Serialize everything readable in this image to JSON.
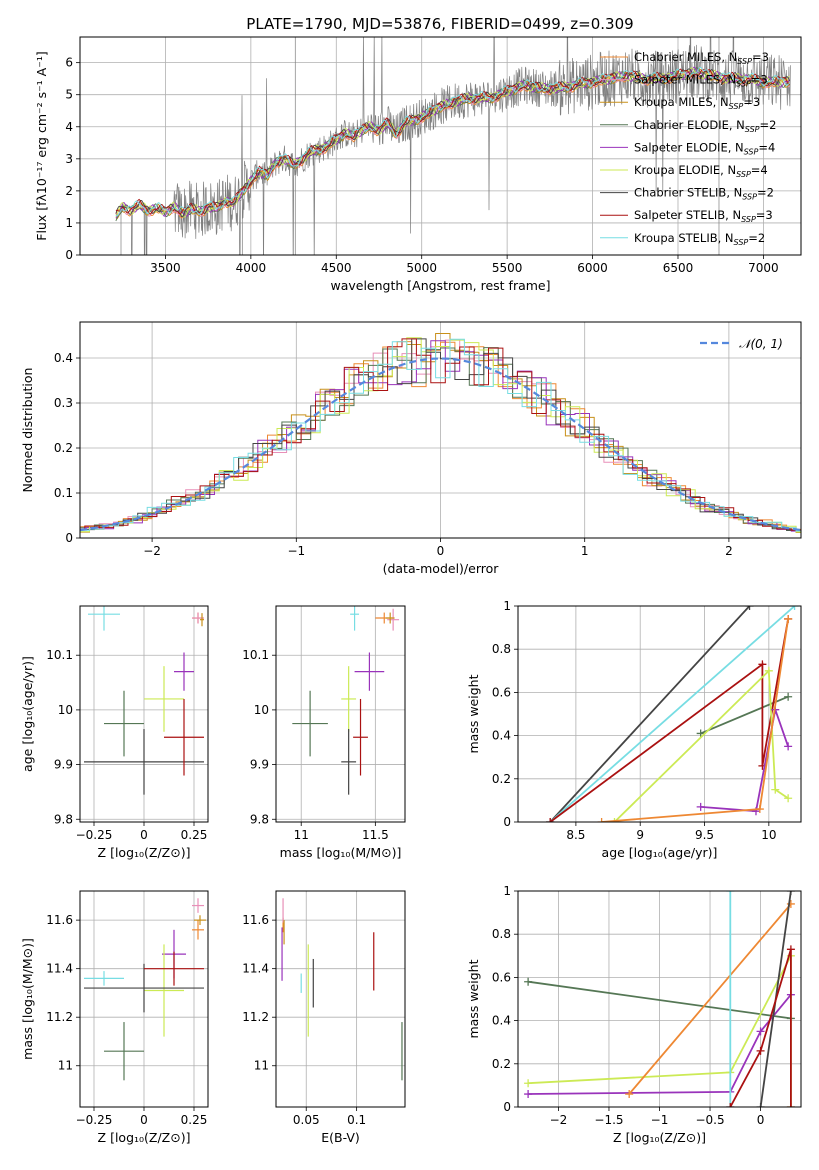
{
  "figure": {
    "title": "PLATE=1790, MJD=53876, FIBERID=0499, z=0.309"
  },
  "colors": {
    "chabrier_miles": "#ee8833",
    "salpeter_miles": "#e88fb8",
    "kroupa_miles": "#c8901a",
    "chabrier_elodie": "#557755",
    "salpeter_elodie": "#9933bb",
    "kroupa_elodie": "#ccea55",
    "chabrier_stelib": "#444444",
    "salpeter_stelib": "#aa1111",
    "kroupa_stelib": "#77dde3",
    "data": "#7f7f7f",
    "gauss": "#5588dd"
  },
  "chart_data": [
    {
      "id": "spectrum",
      "type": "line",
      "title": "PLATE=1790, MJD=53876, FIBERID=0499, z=0.309",
      "xlabel": "wavelength [Angstrom, rest frame]",
      "ylabel": "Flux [fλ10⁻¹⁷ erg cm⁻² s⁻¹ A⁻¹]",
      "xlim": [
        3000,
        7220
      ],
      "ylim": [
        0,
        6.8
      ],
      "xticks": [
        3500,
        4000,
        4500,
        5000,
        5500,
        6000,
        6500,
        7000
      ],
      "yticks": [
        0,
        1,
        2,
        3,
        4,
        5,
        6
      ],
      "legend_position": "right",
      "legend": [
        {
          "label": "Chabrier MILES, N",
          "sub": "SSP",
          "suffix": "=3",
          "color": "chabrier_miles"
        },
        {
          "label": "Salpeter MILES, N",
          "sub": "SSP",
          "suffix": "=3",
          "color": "salpeter_miles"
        },
        {
          "label": "Kroupa MILES, N",
          "sub": "SSP",
          "suffix": "=3",
          "color": "kroupa_miles"
        },
        {
          "label": "Chabrier ELODIE, N",
          "sub": "SSP",
          "suffix": "=2",
          "color": "chabrier_elodie"
        },
        {
          "label": "Salpeter ELODIE, N",
          "sub": "SSP",
          "suffix": "=4",
          "color": "salpeter_elodie"
        },
        {
          "label": "Kroupa ELODIE, N",
          "sub": "SSP",
          "suffix": "=4",
          "color": "kroupa_elodie"
        },
        {
          "label": "Chabrier STELIB, N",
          "sub": "SSP",
          "suffix": "=2",
          "color": "chabrier_stelib"
        },
        {
          "label": "Salpeter STELIB, N",
          "sub": "SSP",
          "suffix": "=3",
          "color": "salpeter_stelib"
        },
        {
          "label": "Kroupa STELIB, N",
          "sub": "SSP",
          "suffix": "=2",
          "color": "kroupa_stelib"
        }
      ],
      "model_continuum": {
        "x": [
          3210,
          3250,
          3300,
          3350,
          3400,
          3450,
          3500,
          3550,
          3600,
          3650,
          3700,
          3750,
          3800,
          3850,
          3900,
          3950,
          4000,
          4050,
          4100,
          4150,
          4200,
          4250,
          4300,
          4350,
          4400,
          4450,
          4500,
          4550,
          4600,
          4650,
          4700,
          4750,
          4800,
          4850,
          4900,
          4950,
          5000,
          5100,
          5200,
          5300,
          5400,
          5500,
          5600,
          5700,
          5800,
          5900,
          6000,
          6100,
          6200,
          6300,
          6400,
          6500,
          6600,
          6700,
          6800,
          6900,
          7000
        ],
        "y": [
          1.2,
          1.5,
          1.4,
          1.55,
          1.4,
          1.45,
          1.35,
          1.5,
          1.3,
          1.45,
          1.35,
          1.5,
          1.45,
          1.7,
          1.6,
          2.0,
          2.3,
          2.6,
          2.5,
          2.9,
          3.0,
          2.8,
          3.0,
          3.2,
          3.3,
          3.4,
          3.6,
          3.8,
          3.7,
          3.9,
          4.0,
          3.9,
          4.1,
          3.8,
          4.1,
          4.2,
          4.3,
          4.6,
          4.8,
          4.9,
          4.9,
          5.1,
          5.3,
          5.2,
          5.2,
          5.3,
          5.4,
          5.5,
          5.6,
          5.5,
          5.5,
          5.6,
          5.7,
          5.6,
          5.5,
          5.5,
          5.4
        ]
      }
    },
    {
      "id": "residuals",
      "type": "bar",
      "xlabel": "(data-model)/error",
      "ylabel": "Normed distribution",
      "xlim": [
        -2.5,
        2.5
      ],
      "ylim": [
        0,
        0.48
      ],
      "xticks": [
        -2,
        -1,
        0,
        1,
        2
      ],
      "yticks": [
        0.0,
        0.1,
        0.2,
        0.3,
        0.4
      ],
      "legend_position": "top-right",
      "legend_label": "𝒩(0, 1)",
      "bin_width": 0.1
    },
    {
      "id": "age_vs_Z",
      "type": "scatter",
      "xlabel": "Z [log₁₀(Z/Z⊙)]",
      "ylabel": "age  [log₁₀(age/yr)]",
      "xlim": [
        -0.32,
        0.32
      ],
      "ylim": [
        9.795,
        10.19
      ],
      "xticks": [
        -0.25,
        0.0,
        0.25
      ],
      "yticks": [
        9.8,
        9.9,
        10.0,
        10.1
      ],
      "points": [
        {
          "color": "chabrier_miles",
          "x": 0.27,
          "xerr": 0.03,
          "y": 10.168,
          "yerr": 0.01
        },
        {
          "color": "salpeter_miles",
          "x": 0.27,
          "xerr": 0.03,
          "y": 10.168,
          "yerr": 0.01
        },
        {
          "color": "kroupa_miles",
          "x": 0.29,
          "xerr": 0.01,
          "y": 10.165,
          "yerr": 0.012
        },
        {
          "color": "chabrier_elodie",
          "x": -0.1,
          "xerr": 0.1,
          "y": 9.975,
          "yerr": 0.06
        },
        {
          "color": "salpeter_elodie",
          "x": 0.2,
          "xerr": 0.05,
          "y": 10.07,
          "yerr": 0.035
        },
        {
          "color": "kroupa_elodie",
          "x": 0.1,
          "xerr": 0.1,
          "y": 10.02,
          "yerr": 0.06
        },
        {
          "color": "chabrier_stelib",
          "x": 0.0,
          "xerr": 0.3,
          "y": 9.905,
          "yerr": 0.06
        },
        {
          "color": "salpeter_stelib",
          "x": 0.2,
          "xerr": 0.1,
          "y": 9.95,
          "yerr": 0.07
        },
        {
          "color": "kroupa_stelib",
          "x": -0.2,
          "xerr": 0.08,
          "y": 10.175,
          "yerr": 0.03
        }
      ]
    },
    {
      "id": "age_vs_mass",
      "type": "scatter",
      "xlabel": "mass [log₁₀(M/M⊙)]",
      "ylabel": "",
      "xlim": [
        10.83,
        11.7
      ],
      "ylim": [
        9.795,
        10.19
      ],
      "xticks": [
        11.0,
        11.5
      ],
      "yticks": [
        9.8,
        9.9,
        10.0,
        10.1
      ],
      "points": [
        {
          "color": "chabrier_miles",
          "x": 11.56,
          "xerr": 0.06,
          "y": 10.168,
          "yerr": 0.01
        },
        {
          "color": "salpeter_miles",
          "x": 11.62,
          "xerr": 0.04,
          "y": 10.165,
          "yerr": 0.02
        },
        {
          "color": "kroupa_miles",
          "x": 11.6,
          "xerr": 0.03,
          "y": 10.168,
          "yerr": 0.01
        },
        {
          "color": "chabrier_elodie",
          "x": 11.06,
          "xerr": 0.12,
          "y": 9.975,
          "yerr": 0.06
        },
        {
          "color": "salpeter_elodie",
          "x": 11.46,
          "xerr": 0.1,
          "y": 10.07,
          "yerr": 0.035
        },
        {
          "color": "kroupa_elodie",
          "x": 11.32,
          "xerr": 0.05,
          "y": 10.02,
          "yerr": 0.06
        },
        {
          "color": "chabrier_stelib",
          "x": 11.32,
          "xerr": 0.05,
          "y": 9.905,
          "yerr": 0.06
        },
        {
          "color": "salpeter_stelib",
          "x": 11.4,
          "xerr": 0.05,
          "y": 9.95,
          "yerr": 0.07
        },
        {
          "color": "kroupa_stelib",
          "x": 11.36,
          "xerr": 0.03,
          "y": 10.175,
          "yerr": 0.03
        }
      ]
    },
    {
      "id": "mass_weight_vs_age",
      "type": "line",
      "xlabel": "age  [log₁₀(age/yr)]",
      "ylabel": "mass weight",
      "xlim": [
        8.05,
        10.25
      ],
      "ylim": [
        0,
        1
      ],
      "xticks": [
        8.5,
        9.0,
        9.5,
        10.0
      ],
      "yticks": [
        0.0,
        0.2,
        0.4,
        0.6,
        0.8,
        1.0
      ],
      "series": [
        {
          "color": "chabrier_stelib",
          "x": [
            8.3,
            9.85
          ],
          "y": [
            0.0,
            1.0
          ]
        },
        {
          "color": "kroupa_stelib",
          "x": [
            8.3,
            10.2
          ],
          "y": [
            0.0,
            1.0
          ]
        },
        {
          "color": "chabrier_elodie",
          "x": [
            9.47,
            10.15
          ],
          "y": [
            0.41,
            0.58
          ]
        },
        {
          "color": "salpeter_stelib",
          "x": [
            8.3,
            9.95,
            9.95,
            10.15
          ],
          "y": [
            0.0,
            0.73,
            0.26,
            0.94
          ]
        },
        {
          "color": "kroupa_elodie",
          "x": [
            8.8,
            10.0,
            10.05,
            10.15
          ],
          "y": [
            0.0,
            0.7,
            0.15,
            0.11
          ]
        },
        {
          "color": "salpeter_elodie",
          "x": [
            9.47,
            9.9,
            10.05,
            10.15
          ],
          "y": [
            0.07,
            0.05,
            0.52,
            0.35
          ]
        },
        {
          "color": "chabrier_miles",
          "x": [
            8.7,
            9.93,
            10.15
          ],
          "y": [
            0.0,
            0.06,
            0.94
          ]
        }
      ]
    },
    {
      "id": "mass_vs_Z",
      "type": "scatter",
      "xlabel": "Z [log₁₀(Z/Z⊙)]",
      "ylabel": "mass [log₁₀(M/M⊙)]",
      "xlim": [
        -0.32,
        0.32
      ],
      "ylim": [
        10.83,
        11.72
      ],
      "xticks": [
        -0.25,
        0.0,
        0.25
      ],
      "yticks": [
        11.0,
        11.2,
        11.4,
        11.6
      ],
      "points": [
        {
          "color": "chabrier_miles",
          "x": 0.27,
          "xerr": 0.03,
          "y": 11.56,
          "yerr": 0.04
        },
        {
          "color": "salpeter_miles",
          "x": 0.27,
          "xerr": 0.03,
          "y": 11.66,
          "yerr": 0.03
        },
        {
          "color": "kroupa_miles",
          "x": 0.28,
          "xerr": 0.03,
          "y": 11.6,
          "yerr": 0.02
        },
        {
          "color": "chabrier_elodie",
          "x": -0.1,
          "xerr": 0.1,
          "y": 11.06,
          "yerr": 0.12
        },
        {
          "color": "salpeter_elodie",
          "x": 0.15,
          "xerr": 0.06,
          "y": 11.46,
          "yerr": 0.1
        },
        {
          "color": "kroupa_elodie",
          "x": 0.1,
          "xerr": 0.1,
          "y": 11.31,
          "yerr": 0.19
        },
        {
          "color": "chabrier_stelib",
          "x": 0.0,
          "xerr": 0.3,
          "y": 11.32,
          "yerr": 0.1
        },
        {
          "color": "salpeter_stelib",
          "x": 0.15,
          "xerr": 0.15,
          "y": 11.4,
          "yerr": 0.07
        },
        {
          "color": "kroupa_stelib",
          "x": -0.2,
          "xerr": 0.1,
          "y": 11.36,
          "yerr": 0.03
        }
      ]
    },
    {
      "id": "mass_vs_ebv",
      "type": "scatter",
      "xlabel": "E(B-V)",
      "ylabel": "",
      "xlim": [
        0.02,
        0.148
      ],
      "ylim": [
        10.83,
        11.72
      ],
      "xticks": [
        0.05,
        0.1
      ],
      "yticks": [
        11.0,
        11.2,
        11.4,
        11.6
      ],
      "points": [
        {
          "color": "chabrier_miles",
          "x": 0.027,
          "y": 11.58,
          "yerr": 0.03
        },
        {
          "color": "salpeter_miles",
          "x": 0.027,
          "y": 11.64,
          "yerr": 0.05
        },
        {
          "color": "kroupa_miles",
          "x": 0.028,
          "y": 11.55,
          "yerr": 0.05
        },
        {
          "color": "chabrier_elodie",
          "x": 0.145,
          "y": 11.06,
          "yerr": 0.12
        },
        {
          "color": "salpeter_elodie",
          "x": 0.026,
          "y": 11.46,
          "yerr": 0.11
        },
        {
          "color": "kroupa_elodie",
          "x": 0.052,
          "y": 11.31,
          "yerr": 0.19
        },
        {
          "color": "chabrier_stelib",
          "x": 0.057,
          "y": 11.34,
          "yerr": 0.1
        },
        {
          "color": "salpeter_stelib",
          "x": 0.117,
          "y": 11.43,
          "yerr": 0.12
        },
        {
          "color": "kroupa_stelib",
          "x": 0.045,
          "y": 11.34,
          "yerr": 0.04
        }
      ]
    },
    {
      "id": "mass_weight_vs_Z",
      "type": "line",
      "xlabel": "Z [log₁₀(Z/Z⊙)]",
      "ylabel": "mass weight",
      "xlim": [
        -2.4,
        0.4
      ],
      "ylim": [
        0,
        1
      ],
      "xticks": [
        -2.0,
        -1.5,
        -1.0,
        -0.5,
        0.0
      ],
      "yticks": [
        0.0,
        0.2,
        0.4,
        0.6,
        0.8,
        1.0
      ],
      "series": [
        {
          "color": "chabrier_elodie",
          "x": [
            -2.3,
            0.3
          ],
          "y": [
            0.58,
            0.41
          ]
        },
        {
          "color": "kroupa_elodie",
          "x": [
            -2.3,
            -0.3,
            0.3,
            0.3
          ],
          "y": [
            0.11,
            0.16,
            0.7,
            0.0
          ]
        },
        {
          "color": "salpeter_elodie",
          "x": [
            -2.3,
            -0.3,
            0.0,
            0.3
          ],
          "y": [
            0.06,
            0.07,
            0.35,
            0.52
          ]
        },
        {
          "color": "chabrier_miles",
          "x": [
            -1.3,
            0.3
          ],
          "y": [
            0.06,
            0.94
          ]
        },
        {
          "color": "kroupa_stelib",
          "x": [
            -0.3,
            -0.3
          ],
          "y": [
            0.0,
            1.0
          ]
        },
        {
          "color": "chabrier_stelib",
          "x": [
            0.0,
            0.3
          ],
          "y": [
            0.0,
            1.0
          ]
        },
        {
          "color": "salpeter_stelib",
          "x": [
            -0.3,
            0.0,
            0.3,
            0.3
          ],
          "y": [
            0.0,
            0.26,
            0.73,
            0.0
          ]
        }
      ]
    }
  ]
}
